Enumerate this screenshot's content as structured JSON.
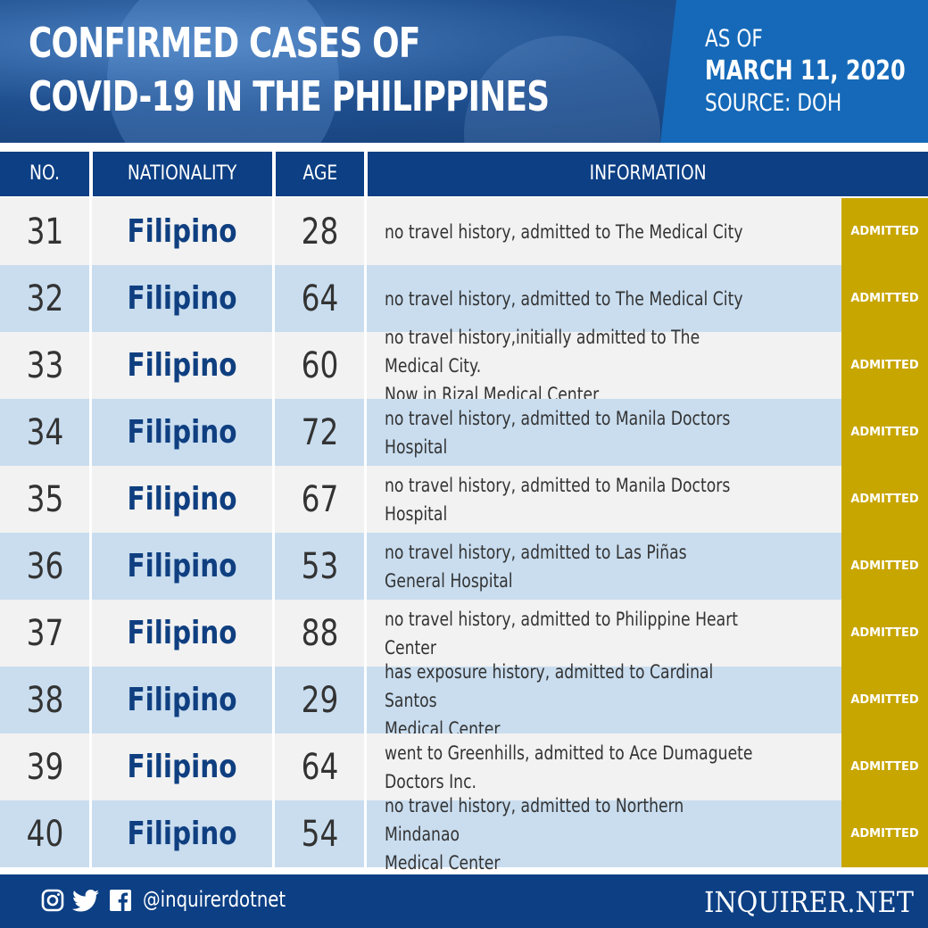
{
  "header": {
    "title_line1": "CONFIRMED CASES OF",
    "title_line2": "COVID-19 IN THE PHILIPPINES",
    "as_of": "AS OF",
    "date": "MARCH 11, 2020",
    "source": "SOURCE: DOH"
  },
  "table": {
    "columns": [
      "NO.",
      "NATIONALITY",
      "AGE",
      "INFORMATION"
    ],
    "rows": [
      {
        "no": "31",
        "nationality": "Filipino",
        "age": "28",
        "info": "no travel history, admitted to The Medical City",
        "status": "ADMITTED"
      },
      {
        "no": "32",
        "nationality": "Filipino",
        "age": "64",
        "info": "no travel history, admitted to The Medical City",
        "status": "ADMITTED"
      },
      {
        "no": "33",
        "nationality": "Filipino",
        "age": "60",
        "info": "no travel history,initially admitted to The Medical City.\nNow in Rizal Medical Center",
        "status": "ADMITTED"
      },
      {
        "no": "34",
        "nationality": "Filipino",
        "age": "72",
        "info": "no travel history, admitted to Manila Doctors Hospital",
        "status": "ADMITTED"
      },
      {
        "no": "35",
        "nationality": "Filipino",
        "age": "67",
        "info": "no travel history, admitted to Manila Doctors Hospital",
        "status": "ADMITTED"
      },
      {
        "no": "36",
        "nationality": "Filipino",
        "age": "53",
        "info": "no travel history, admitted to Las Piñas\nGeneral Hospital",
        "status": "ADMITTED"
      },
      {
        "no": "37",
        "nationality": "Filipino",
        "age": "88",
        "info": "no travel history,  admitted to Philippine Heart Center",
        "status": "ADMITTED"
      },
      {
        "no": "38",
        "nationality": "Filipino",
        "age": "29",
        "info": "has exposure history, admitted to Cardinal Santos\nMedical Center",
        "status": "ADMITTED"
      },
      {
        "no": "39",
        "nationality": "Filipino",
        "age": "64",
        "info": "went to Greenhills, admitted to Ace Dumaguete\nDoctors Inc.",
        "status": "ADMITTED"
      },
      {
        "no": "40",
        "nationality": "Filipino",
        "age": "54",
        "info": "no travel history, admitted to Northern Mindanao\nMedical Center",
        "status": "ADMITTED"
      }
    ]
  },
  "colors": {
    "navy": "#0c3f84",
    "row_light": "#f2f2f2",
    "row_blue": "#c9ddef",
    "status_gold": "#c8a600",
    "nationality_text": "#0f3f80"
  },
  "footer": {
    "icons": [
      "instagram-icon",
      "twitter-icon",
      "facebook-icon"
    ],
    "handle": "@inquirerdotnet",
    "brand": "INQUIRER.NET"
  }
}
